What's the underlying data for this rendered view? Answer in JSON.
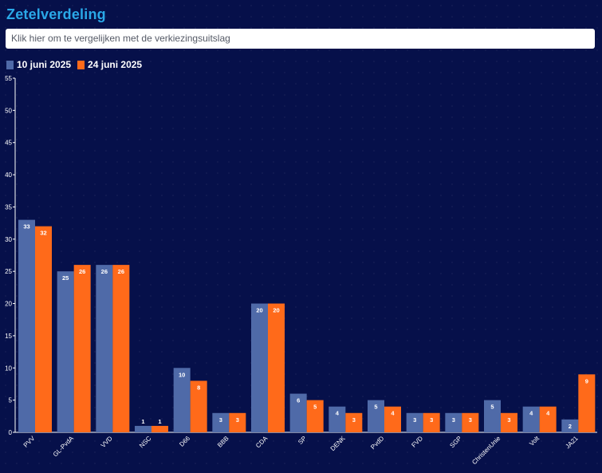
{
  "header": {
    "title": "Zetelverdeling",
    "compare_label": "Klik hier om te vergelijken met de verkiezingsuitslag"
  },
  "colors": {
    "title": "#2aa8e8",
    "series_1": "#4f6aa8",
    "series_2": "#ff6a1a",
    "background": "#06104a"
  },
  "chart_data": {
    "type": "bar",
    "categories": [
      "PVV",
      "GL-PvdA",
      "VVD",
      "NSC",
      "D66",
      "BBB",
      "CDA",
      "SP",
      "DENK",
      "PvdD",
      "FVD",
      "SGP",
      "ChristenUnie",
      "Volt",
      "JA21"
    ],
    "series": [
      {
        "name": "10 juni 2025",
        "values": [
          33,
          25,
          26,
          1,
          10,
          3,
          20,
          6,
          4,
          5,
          3,
          3,
          5,
          4,
          2
        ]
      },
      {
        "name": "24 juni 2025",
        "values": [
          32,
          26,
          26,
          1,
          8,
          3,
          20,
          5,
          3,
          4,
          3,
          3,
          3,
          4,
          9
        ]
      }
    ],
    "ylim": [
      0,
      55
    ],
    "yticks": [
      0,
      5,
      10,
      15,
      20,
      25,
      30,
      35,
      40,
      45,
      50,
      55
    ],
    "xlabel": "",
    "ylabel": "",
    "legend_position": "top-left",
    "grid": false
  }
}
